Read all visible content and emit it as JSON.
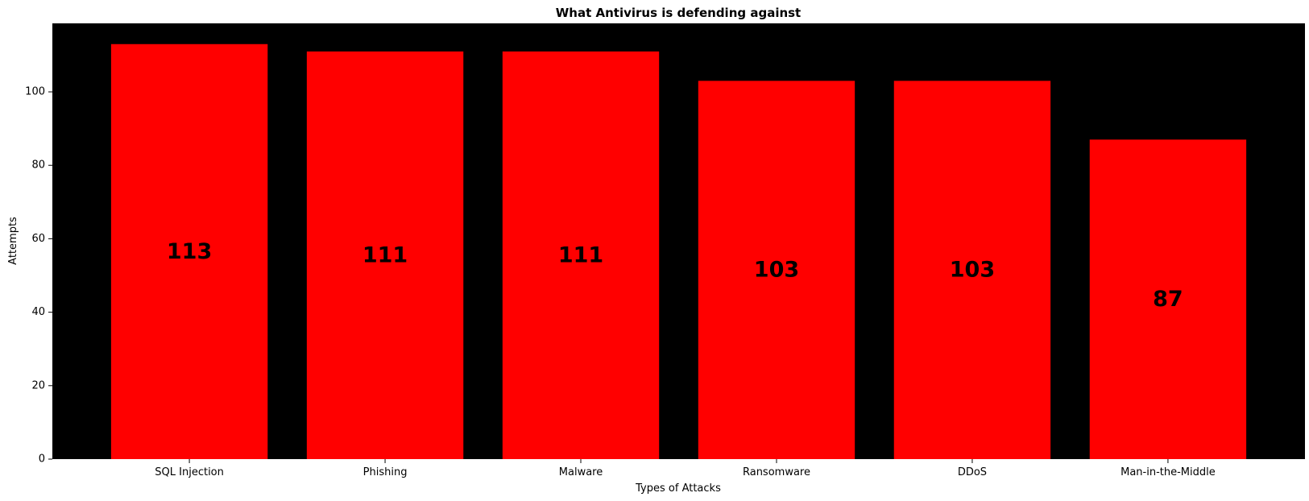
{
  "chart_data": {
    "type": "bar",
    "title": "What Antivirus is defending against",
    "xlabel": "Types of Attacks",
    "ylabel": "Attempts",
    "categories": [
      "SQL Injection",
      "Phishing",
      "Malware",
      "Ransomware",
      "DDoS",
      "Man-in-the-Middle"
    ],
    "values": [
      113,
      111,
      111,
      103,
      103,
      87
    ],
    "value_labels": [
      "113",
      "111",
      "111",
      "103",
      "103",
      "87"
    ],
    "ylim": [
      0,
      118.65
    ],
    "yticks": [
      0,
      20,
      40,
      60,
      80,
      100
    ],
    "ytick_labels": [
      "0",
      "20",
      "40",
      "60",
      "80",
      "100"
    ],
    "grid": false,
    "bar_color": "#ff0000",
    "plot_background": "#000000",
    "value_label_color": "#000000",
    "value_label_position": "bar-center"
  }
}
